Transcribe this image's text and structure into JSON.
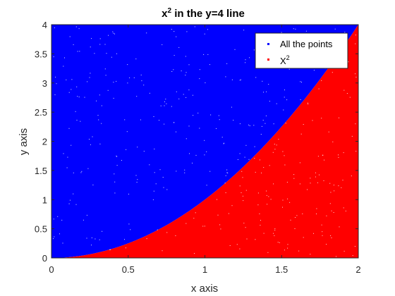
{
  "chart_data": {
    "type": "scatter",
    "title": "x",
    "title_superscript": "2",
    "title_suffix": " in the y=4 line",
    "xlabel": "x axis",
    "ylabel": "y axis",
    "xlim": [
      0,
      2
    ],
    "ylim": [
      0,
      4
    ],
    "xticks": [
      0,
      0.5,
      1,
      1.5,
      2
    ],
    "xtick_labels": [
      "0",
      "0.5",
      "1",
      "1.5",
      "2"
    ],
    "yticks": [
      0,
      0.5,
      1,
      1.5,
      2,
      2.5,
      3,
      3.5,
      4
    ],
    "ytick_labels": [
      "0",
      "0.5",
      "1",
      "1.5",
      "2",
      "2.5",
      "3",
      "3.5",
      "4"
    ],
    "grid": false,
    "legend_position": "top-right",
    "series": [
      {
        "name": "All the points",
        "color": "#0000ff",
        "region": "y > x^2",
        "marker": "point"
      },
      {
        "name": "X",
        "name_superscript": "2",
        "color": "#ff0000",
        "region": "y <= x^2",
        "marker": "point"
      }
    ],
    "boundary_curve": "y = x^2"
  }
}
